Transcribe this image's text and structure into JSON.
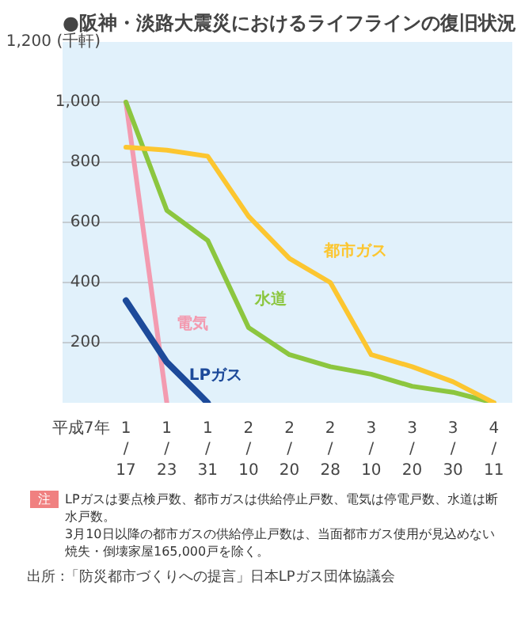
{
  "chart_data": {
    "type": "line",
    "title": "●阪神・淡路大震災におけるライフラインの復旧状況",
    "xlabel": "平成7年",
    "categories": [
      "1/17",
      "1/23",
      "1/31",
      "2/10",
      "2/20",
      "2/28",
      "3/10",
      "3/20",
      "3/30",
      "4/11"
    ],
    "series": [
      {
        "name": "電気",
        "color": "#f39bb0",
        "values": [
          1000,
          0,
          null,
          null,
          null,
          null,
          null,
          null,
          null,
          null
        ]
      },
      {
        "name": "水道",
        "color": "#8cc63f",
        "values": [
          1000,
          640,
          540,
          250,
          160,
          120,
          95,
          55,
          35,
          0
        ]
      },
      {
        "name": "都市ガス",
        "color": "#fcc630",
        "values": [
          850,
          840,
          820,
          620,
          480,
          400,
          160,
          120,
          70,
          0
        ]
      },
      {
        "name": "LPガス",
        "color": "#1d4a9a",
        "values": [
          340,
          135,
          0,
          null,
          null,
          null,
          null,
          null,
          null,
          null
        ]
      }
    ],
    "ylim": [
      0,
      1200
    ],
    "yticks": [
      {
        "value": 200,
        "label": "200"
      },
      {
        "value": 400,
        "label": "400"
      },
      {
        "value": 600,
        "label": "600"
      },
      {
        "value": 800,
        "label": "800"
      },
      {
        "value": 1000,
        "label": "1,000"
      },
      {
        "value": 1200,
        "label": "1,200 (千軒)"
      }
    ],
    "grid": "y",
    "marker": "none",
    "line_style": "solid",
    "annotations": [
      "注",
      "LPガスは要点検戸数、都市ガスは供給停止戸数、電気は停電戸数、水道は断水戸数。",
      "3月10日以降の都市ガスの供給停止戸数は、当面都市ガス使用が見込めない焼失・倒壊家屋165,000戸を除く。",
      "出所 :「防災都市づくりへの提言」日本LPガス団体協議会"
    ]
  }
}
